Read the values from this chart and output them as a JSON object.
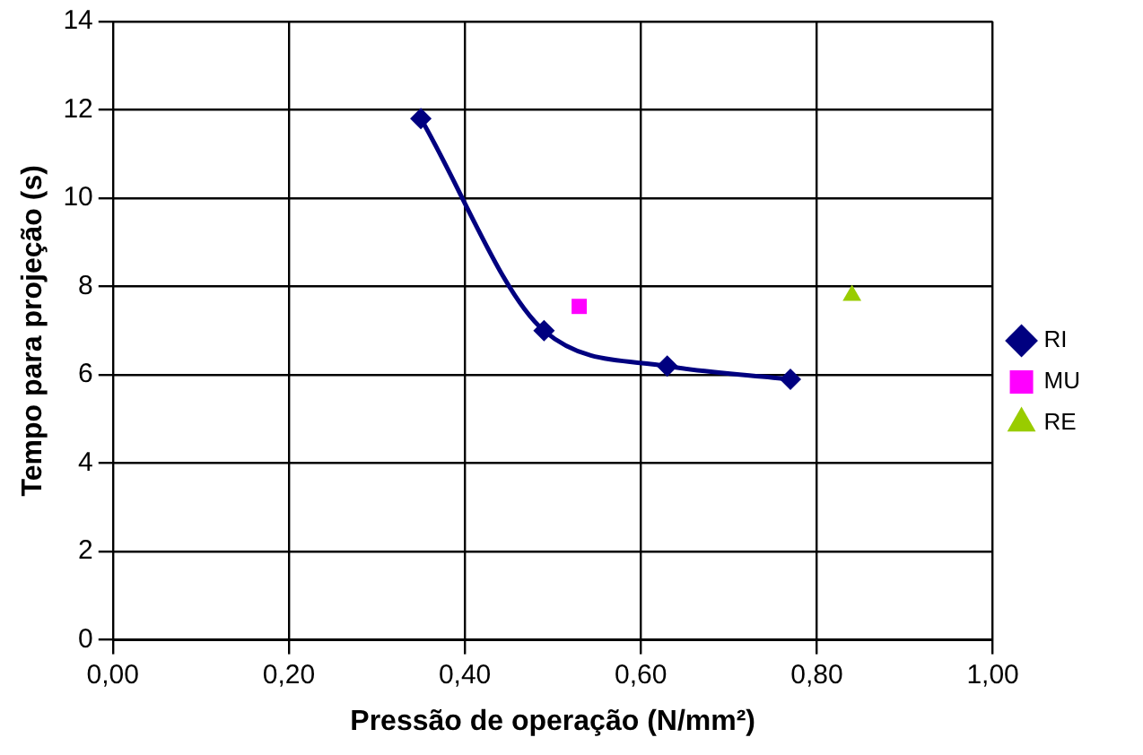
{
  "chart_data": {
    "type": "line",
    "xlabel": "Pressão de operação (N/mm²)",
    "ylabel": "Tempo para projeção (s)",
    "xlim": [
      0,
      1
    ],
    "xticks": [
      {
        "value": 0,
        "label": "0,00"
      },
      {
        "value": 0.2,
        "label": "0,20"
      },
      {
        "value": 0.4,
        "label": "0,40"
      },
      {
        "value": 0.6,
        "label": "0,60"
      },
      {
        "value": 0.8,
        "label": "0,80"
      },
      {
        "value": 1,
        "label": "1,00"
      }
    ],
    "ylim": [
      0,
      14
    ],
    "yticks": [
      0,
      2,
      4,
      6,
      8,
      10,
      12,
      14
    ],
    "grid": true,
    "legend": "right",
    "series": [
      {
        "name": "RI",
        "color": "#000080",
        "marker": "diamond",
        "x": [
          0.35,
          0.49,
          0.63,
          0.77
        ],
        "values": [
          11.8,
          7.0,
          6.2,
          5.9
        ]
      },
      {
        "name": "MU",
        "type": "scatter",
        "color": "#ff00ff",
        "marker": "square",
        "x": [
          0.53
        ],
        "values": [
          7.55
        ]
      },
      {
        "name": "RE",
        "type": "scatter",
        "color": "#99cc00",
        "marker": "triangle",
        "x": [
          0.84
        ],
        "values": [
          7.8
        ]
      }
    ]
  }
}
